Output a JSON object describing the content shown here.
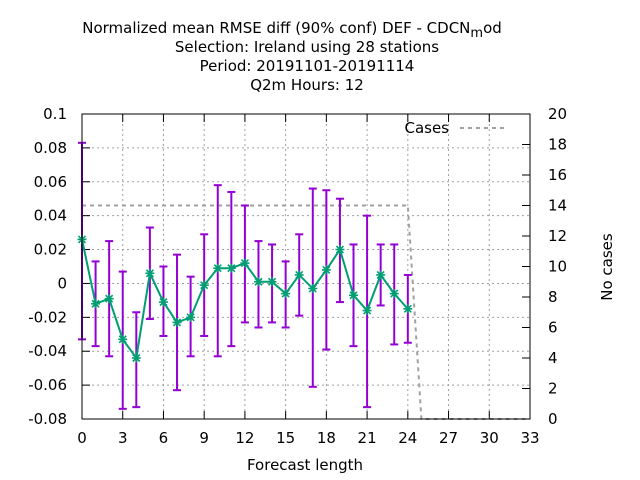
{
  "chart_data": {
    "type": "line",
    "title_lines": [
      "Normalized mean RMSE diff (90% conf) DEF - CDCN",
      "Selection: Ireland using    28 stations",
      "Period: 20191101-20191114",
      "Q2m   Hours:  12"
    ],
    "title_subscript": "m",
    "title_tail": "od",
    "xlabel": "Forecast length",
    "ylabel": "",
    "y2label": "No cases",
    "xlim": [
      0,
      33
    ],
    "ylim": [
      -0.08,
      0.1
    ],
    "y2lim": [
      0,
      20
    ],
    "x_ticks": [
      "0",
      "3",
      "6",
      "9",
      "12",
      "15",
      "18",
      "21",
      "24",
      "27",
      "30",
      "33"
    ],
    "y_ticks": [
      "-0.08",
      "-0.06",
      "-0.04",
      "-0.02",
      "0",
      "0.02",
      "0.04",
      "0.06",
      "0.08",
      "0.1"
    ],
    "y2_ticks": [
      "0",
      "2",
      "4",
      "6",
      "8",
      "10",
      "12",
      "14",
      "16",
      "18",
      "20"
    ],
    "grid": true,
    "legend_position": "top-right",
    "series": [
      {
        "name": "",
        "color": "#009e73",
        "error_color": "#9400d3",
        "x": [
          0,
          1,
          2,
          3,
          4,
          5,
          6,
          7,
          8,
          9,
          10,
          11,
          12,
          13,
          14,
          15,
          16,
          17,
          18,
          19,
          20,
          21,
          22,
          23,
          24
        ],
        "y": [
          0.026,
          -0.012,
          -0.009,
          -0.033,
          -0.044,
          0.006,
          -0.011,
          -0.023,
          -0.02,
          -0.001,
          0.009,
          0.009,
          0.012,
          0.001,
          0.001,
          -0.006,
          0.005,
          -0.003,
          0.008,
          0.02,
          -0.007,
          -0.016,
          0.005,
          -0.006,
          -0.015
        ],
        "y_low": [
          -0.033,
          -0.037,
          -0.043,
          -0.074,
          -0.073,
          -0.021,
          -0.031,
          -0.063,
          -0.043,
          -0.031,
          -0.043,
          -0.037,
          -0.023,
          -0.026,
          -0.023,
          -0.026,
          -0.019,
          -0.061,
          -0.039,
          -0.011,
          -0.037,
          -0.073,
          -0.013,
          -0.036,
          -0.035
        ],
        "y_high": [
          0.083,
          0.013,
          0.025,
          0.007,
          -0.017,
          0.033,
          0.01,
          0.017,
          0.004,
          0.029,
          0.058,
          0.054,
          0.046,
          0.025,
          0.023,
          0.013,
          0.029,
          0.056,
          0.055,
          0.05,
          0.023,
          0.04,
          0.023,
          0.023,
          0.005
        ]
      },
      {
        "name": "Cases",
        "axis": "y2",
        "color": "#a0a0a0",
        "style": "dashed",
        "x": [
          0,
          24,
          25,
          33
        ],
        "y": [
          14,
          14,
          0,
          0
        ]
      }
    ]
  }
}
